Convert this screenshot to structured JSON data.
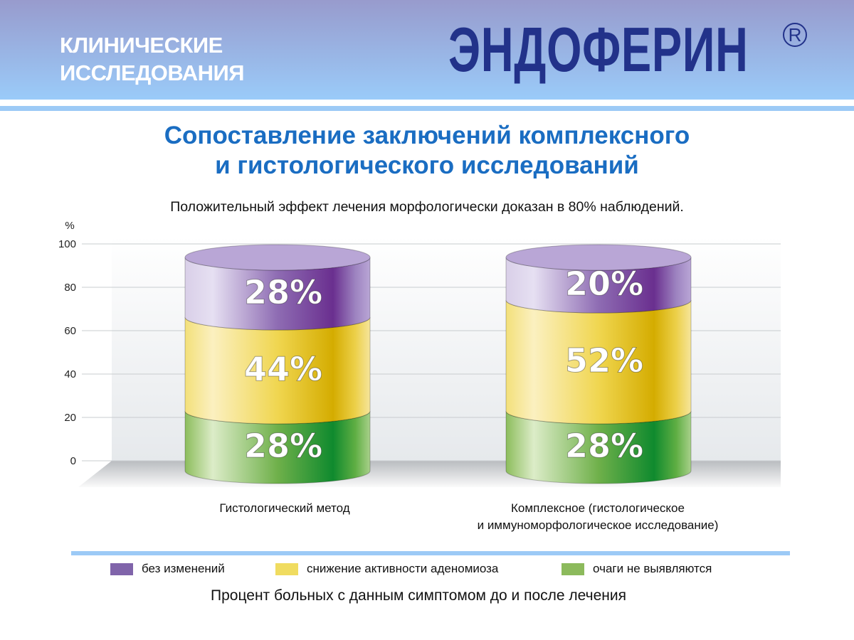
{
  "header": {
    "subtitle_line1": "КЛИНИЧЕСКИЕ",
    "subtitle_line2": "ИССЛЕДОВАНИЯ",
    "brand": "ЭНДОФЕРИН",
    "registered": "R"
  },
  "colors": {
    "purple": "#7d5fa8",
    "yellow": "#f0dc5e",
    "green": "#8ab95a",
    "title": "#1a6dc2",
    "brand": "#22328a"
  },
  "chart_data": {
    "type": "bar",
    "stacked": true,
    "style": "3d-cylinder",
    "title_line1": "Сопоставление заключений комплексного",
    "title_line2": "и гистологического исследований",
    "subtitle": "Положительный эффект лечения морфологически доказан в 80% наблюдений.",
    "ylabel": "%",
    "ylim": [
      0,
      100
    ],
    "yticks": [
      "0",
      "20",
      "40",
      "60",
      "80",
      "100"
    ],
    "grid": true,
    "categories": [
      "Гистологический метод",
      "Комплексное (гистологическое и иммуноморфологическое исследование)"
    ],
    "category_lines": [
      [
        "Гистологический метод"
      ],
      [
        "Комплексное (гистологическое",
        "и иммуноморфологическое исследование)"
      ]
    ],
    "series": [
      {
        "name": "очаги не выявляются",
        "color": "green",
        "values": [
          28,
          28
        ],
        "labels": [
          "28%",
          "28%"
        ]
      },
      {
        "name": "снижение активности аденомиоза",
        "color": "yellow",
        "values": [
          44,
          52
        ],
        "labels": [
          "44%",
          "52%"
        ]
      },
      {
        "name": "без изменений",
        "color": "purple",
        "values": [
          28,
          20
        ],
        "labels": [
          "28%",
          "20%"
        ]
      }
    ],
    "legend": [
      {
        "label": "без изменений",
        "color": "purple"
      },
      {
        "label": "снижение активности аденомиоза",
        "color": "yellow"
      },
      {
        "label": "очаги не выявляются",
        "color": "green"
      }
    ],
    "legend_position": "bottom",
    "caption": "Процент больных с данным симптомом до и  после лечения"
  }
}
